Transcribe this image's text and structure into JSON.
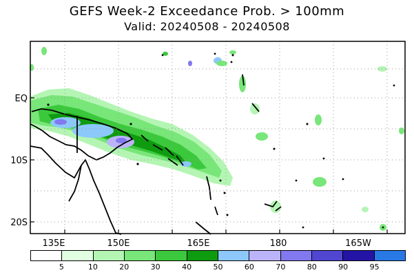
{
  "title": "GEFS Week-2 Exceedance Prob. > 100mm",
  "subtitle": "Valid: 20240508 - 20240508",
  "lon_labels": [
    "135E",
    "150E",
    "165E",
    "180",
    "165W"
  ],
  "lat_labels": [
    "EQ",
    "10S",
    "20S"
  ],
  "colorbar": {
    "colors": [
      "#ffffff",
      "#e1ffe1",
      "#b4f5b4",
      "#78e678",
      "#3cc83c",
      "#0f9b0f",
      "#8cc8fa",
      "#bcb4fa",
      "#8278f0",
      "#5046d2",
      "#2314a5",
      "#2878e6"
    ],
    "labels": [
      "5",
      "10",
      "20",
      "30",
      "40",
      "50",
      "60",
      "70",
      "80",
      "90",
      "95"
    ]
  },
  "colors": {
    "land_outline": "#000000",
    "grid": "#999999"
  }
}
